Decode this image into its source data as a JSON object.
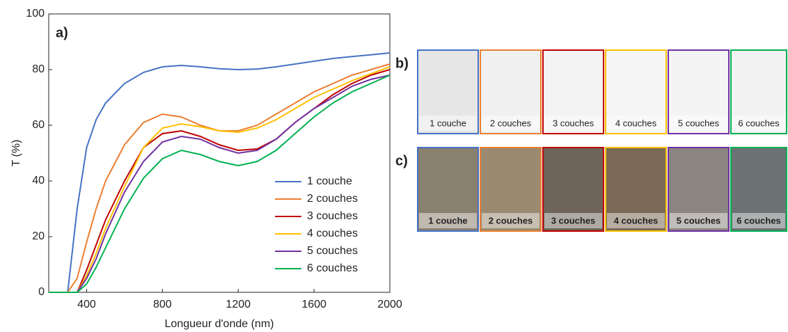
{
  "chart_data": {
    "type": "line",
    "panel_label": "a)",
    "xlabel": "Longueur d'onde (nm)",
    "ylabel": "T (%)",
    "x": [
      200,
      300,
      350,
      400,
      450,
      500,
      600,
      700,
      800,
      900,
      1000,
      1100,
      1200,
      1300,
      1400,
      1500,
      1600,
      1700,
      1800,
      1900,
      2000
    ],
    "xlim": [
      200,
      2000
    ],
    "xticks": [
      400,
      800,
      1200,
      1600,
      2000
    ],
    "ylim": [
      0,
      100
    ],
    "yticks": [
      0,
      20,
      40,
      60,
      80,
      100
    ],
    "legend": "lower right",
    "series": [
      {
        "name": "1 couche",
        "color": "#4472c4",
        "values": [
          0,
          0,
          30,
          52,
          62,
          68,
          75,
          79,
          81,
          81.5,
          81,
          80.3,
          80,
          80.2,
          81,
          82,
          83,
          84,
          84.7,
          85.3,
          86
        ]
      },
      {
        "name": "2 couches",
        "color": "#ed7d31",
        "values": [
          0,
          0,
          5,
          18,
          30,
          40,
          53,
          61,
          64,
          63,
          60,
          58,
          58,
          60,
          64,
          68,
          72,
          75,
          78,
          80,
          82
        ]
      },
      {
        "name": "3 couches",
        "color": "#c00000",
        "values": [
          0,
          0,
          0,
          8,
          17,
          26,
          40,
          52,
          57,
          58,
          56,
          53,
          51,
          51.5,
          55,
          61,
          66,
          71,
          75,
          78,
          80
        ]
      },
      {
        "name": "4 couches",
        "color": "#ffc000",
        "values": [
          0,
          0,
          0,
          6,
          14,
          23,
          38,
          52,
          59,
          60.5,
          59.5,
          58,
          57.5,
          59,
          62,
          66,
          70,
          73,
          76,
          78.5,
          81
        ]
      },
      {
        "name": "5 couches",
        "color": "#7030a0",
        "values": [
          0,
          0,
          0,
          5,
          12,
          21,
          36,
          47,
          54,
          56,
          55,
          52,
          50,
          51,
          55,
          61,
          66,
          70,
          74,
          76.5,
          78
        ]
      },
      {
        "name": "6 couches",
        "color": "#00b050",
        "values": [
          0,
          0,
          0,
          3,
          9,
          16,
          30,
          41,
          48,
          51,
          49.5,
          47,
          45.5,
          47,
          51,
          57,
          63,
          68,
          72,
          75,
          78
        ]
      }
    ]
  },
  "photos": {
    "b": {
      "label": "b)",
      "items": [
        "1 couche",
        "2 couches",
        "3 couches",
        "4 couches",
        "5 couches",
        "6 couches"
      ]
    },
    "c": {
      "label": "c)",
      "items": [
        "1 couche",
        "2 couches",
        "3 couches",
        "4 couches",
        "5 couches",
        "6 couches"
      ]
    }
  }
}
